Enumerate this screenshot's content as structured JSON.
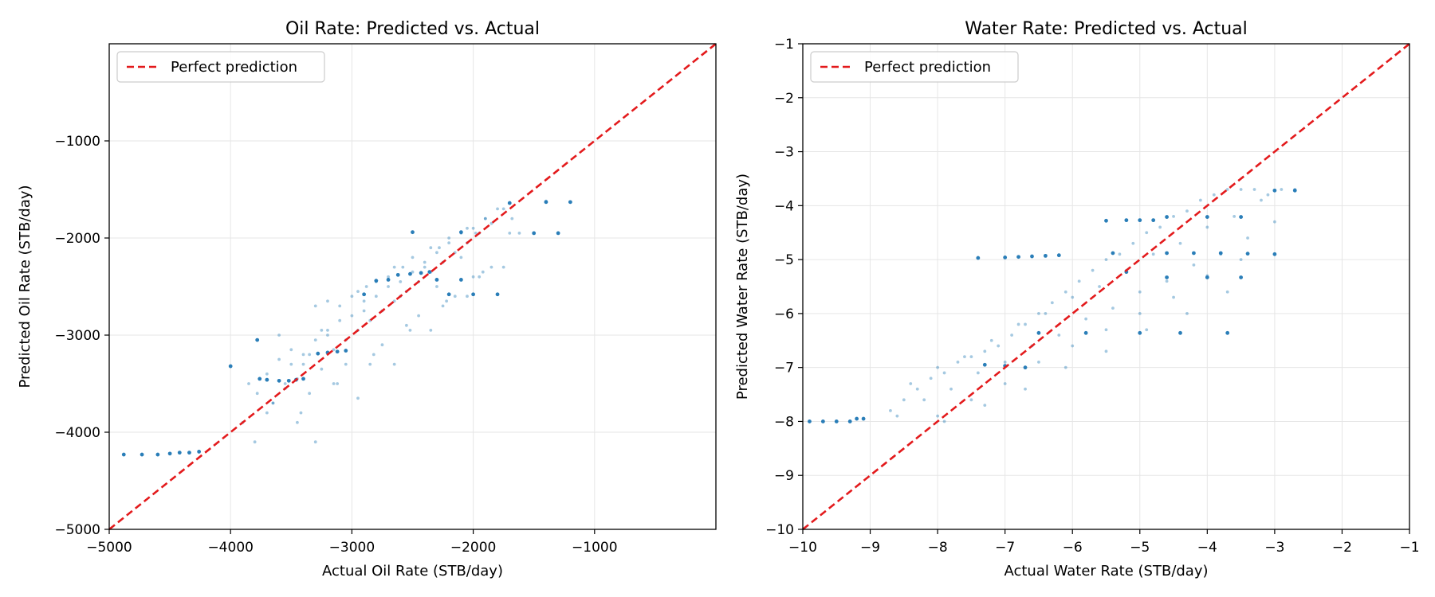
{
  "chart_data": [
    {
      "type": "scatter",
      "title": "Oil Rate: Predicted vs. Actual",
      "xlabel": "Actual Oil Rate (STB/day)",
      "ylabel": "Predicted Oil Rate (STB/day)",
      "xlim": [
        -5000,
        0
      ],
      "ylim": [
        -5000,
        0
      ],
      "xticks": [
        -5000,
        -4000,
        -3000,
        -2000,
        -1000
      ],
      "xtick_labels": [
        "−5000",
        "−4000",
        "−3000",
        "−2000",
        "−1000"
      ],
      "yticks": [
        -5000,
        -4000,
        -3000,
        -2000,
        -1000
      ],
      "ytick_labels": [
        "−5000",
        "−4000",
        "−3000",
        "−2000",
        "−1000"
      ],
      "grid": true,
      "legend": {
        "placement": "upper-left",
        "entries": [
          {
            "label": "Perfect prediction",
            "style": "dashed",
            "color": "#e31a1c"
          }
        ]
      },
      "reference_line": {
        "from": [
          -5000,
          -5000
        ],
        "to": [
          0,
          0
        ]
      },
      "series": [
        {
          "style": "cloud",
          "color": "#1f77b4",
          "x": [
            -3850,
            -3780,
            -3700,
            -3650,
            -3600,
            -3550,
            -3500,
            -3450,
            -3400,
            -3350,
            -3300,
            -3250,
            -3200,
            -3150,
            -3100,
            -3050,
            -3000,
            -2950,
            -2900,
            -2850,
            -2800,
            -2750,
            -2700,
            -2650,
            -2600,
            -2550,
            -2500,
            -2450,
            -2400,
            -2350,
            -2300,
            -2250,
            -2200,
            -2150,
            -2100,
            -2050,
            -2000,
            -1950,
            -1900,
            -1850,
            -1800,
            -3700,
            -3550,
            -3400,
            -3250,
            -3100,
            -2950,
            -2800,
            -2650,
            -2500,
            -2350,
            -2200,
            -2050,
            -1900,
            -1750,
            -3600,
            -3300,
            -3000,
            -2700,
            -2400,
            -2100,
            -3450,
            -3150,
            -2850,
            -2550,
            -2250,
            -1950,
            -3900,
            -3650,
            -3350,
            -3050,
            -2750,
            -2450,
            -2150,
            -1850,
            -3500,
            -3200,
            -2900,
            -2600,
            -2300,
            -2000,
            -1700,
            -3800,
            -3420,
            -3120,
            -2820,
            -2520,
            -2220,
            -1920,
            -1620,
            -3300,
            -2950,
            -2650,
            -2350,
            -2050,
            -1750,
            -3200,
            -2880,
            -2580,
            -2280,
            -1980,
            -1680,
            -1400
          ],
          "y": [
            -3500,
            -3600,
            -3400,
            -3700,
            -3250,
            -3550,
            -3150,
            -3450,
            -3300,
            -3200,
            -3050,
            -3350,
            -2950,
            -3150,
            -2850,
            -3050,
            -2800,
            -2950,
            -2650,
            -2850,
            -2600,
            -2750,
            -2500,
            -2650,
            -2450,
            -2550,
            -2350,
            -2450,
            -2250,
            -2350,
            -2150,
            -2250,
            -2050,
            -2150,
            -1950,
            -2050,
            -1900,
            -1950,
            -1800,
            -1850,
            -1700,
            -3800,
            -3500,
            -3200,
            -2950,
            -2700,
            -2550,
            -2450,
            -2300,
            -2200,
            -2100,
            -2000,
            -1900,
            -1800,
            -1700,
            -3000,
            -2700,
            -2600,
            -2400,
            -2300,
            -2200,
            -3900,
            -3500,
            -3300,
            -2900,
            -2700,
            -2400,
            -3900,
            -3700,
            -3600,
            -3300,
            -3100,
            -2800,
            -2600,
            -2300,
            -3300,
            -3000,
            -2750,
            -2600,
            -2500,
            -2400,
            -1950,
            -4100,
            -3800,
            -3500,
            -3200,
            -2950,
            -2650,
            -2350,
            -1950,
            -4100,
            -3650,
            -3300,
            -2950,
            -2600,
            -2300,
            -2650,
            -2500,
            -2300,
            -2100,
            -1950,
            -1800,
            -1620
          ]
        },
        {
          "style": "rows",
          "color": "#1f77b4",
          "x": [
            -4880,
            -4730,
            -4600,
            -4500,
            -4420,
            -4340,
            -4260,
            -3760,
            -3700,
            -3600,
            -3520,
            -3460,
            -3400,
            -3280,
            -3200,
            -3120,
            -3050,
            -2800,
            -2620,
            -2520,
            -2430,
            -2360,
            -2900,
            -2200,
            -2000,
            -1800,
            -2700,
            -2300,
            -2100,
            -1500,
            -1300,
            -2500,
            -2100,
            -1700,
            -1400,
            -1200,
            -4000,
            -3780
          ],
          "y": [
            -4230,
            -4230,
            -4230,
            -4220,
            -4210,
            -4210,
            -4200,
            -3450,
            -3460,
            -3470,
            -3470,
            -3460,
            -3450,
            -3190,
            -3180,
            -3170,
            -3160,
            -2440,
            -2380,
            -2370,
            -2360,
            -2350,
            -2580,
            -2580,
            -2580,
            -2580,
            -2430,
            -2430,
            -2430,
            -1950,
            -1950,
            -1940,
            -1940,
            -1640,
            -1630,
            -1630,
            -3320,
            -3050
          ]
        }
      ]
    },
    {
      "type": "scatter",
      "title": "Water Rate: Predicted vs. Actual",
      "xlabel": "Actual Water Rate (STB/day)",
      "ylabel": "Predicted Water Rate (STB/day)",
      "xlim": [
        -10,
        -1
      ],
      "ylim": [
        -10,
        -1
      ],
      "xticks": [
        -10,
        -9,
        -8,
        -7,
        -6,
        -5,
        -4,
        -3,
        -2,
        -1
      ],
      "xtick_labels": [
        "−10",
        "−9",
        "−8",
        "−7",
        "−6",
        "−5",
        "−4",
        "−3",
        "−2",
        "−1"
      ],
      "yticks": [
        -10,
        -9,
        -8,
        -7,
        -6,
        -5,
        -4,
        -3,
        -2,
        -1
      ],
      "ytick_labels": [
        "−10",
        "−9",
        "−8",
        "−7",
        "−6",
        "−5",
        "−4",
        "−3",
        "−2",
        "−1"
      ],
      "grid": true,
      "legend": {
        "placement": "upper-left",
        "entries": [
          {
            "label": "Perfect prediction",
            "style": "dashed",
            "color": "#e31a1c"
          }
        ]
      },
      "reference_line": {
        "from": [
          -10,
          -10
        ],
        "to": [
          -1,
          -1
        ]
      },
      "series": [
        {
          "style": "cloud",
          "color": "#1f77b4",
          "x": [
            -8.7,
            -8.5,
            -8.3,
            -8.1,
            -7.9,
            -7.7,
            -7.5,
            -7.3,
            -7.1,
            -6.9,
            -6.7,
            -6.5,
            -6.3,
            -6.1,
            -5.9,
            -5.7,
            -5.5,
            -5.3,
            -5.1,
            -4.9,
            -4.7,
            -4.5,
            -4.3,
            -4.1,
            -3.9,
            -3.7,
            -3.5,
            -3.3,
            -3.1,
            -2.9,
            -2.7,
            -8.6,
            -8.2,
            -7.8,
            -7.4,
            -7.0,
            -6.6,
            -6.2,
            -5.8,
            -5.4,
            -5.0,
            -4.6,
            -4.2,
            -3.8,
            -3.4,
            -3.0,
            -8.4,
            -8.0,
            -7.6,
            -7.2,
            -6.8,
            -6.4,
            -6.0,
            -5.6,
            -5.2,
            -4.8,
            -4.4,
            -4.0,
            -3.6,
            -3.2,
            -7.9,
            -7.3,
            -6.7,
            -6.1,
            -5.5,
            -4.9,
            -4.3,
            -3.7,
            -8.0,
            -7.5,
            -7.0,
            -6.5,
            -6.0,
            -5.5,
            -5.0,
            -4.5,
            -4.0,
            -3.5
          ],
          "y": [
            -7.8,
            -7.6,
            -7.4,
            -7.2,
            -7.1,
            -6.9,
            -6.8,
            -6.7,
            -6.6,
            -6.4,
            -6.2,
            -6.0,
            -5.8,
            -5.6,
            -5.4,
            -5.2,
            -5.0,
            -4.9,
            -4.7,
            -4.5,
            -4.4,
            -4.2,
            -4.1,
            -3.9,
            -3.8,
            -3.7,
            -3.7,
            -3.7,
            -3.8,
            -3.7,
            -3.7,
            -7.9,
            -7.6,
            -7.4,
            -7.1,
            -6.9,
            -6.6,
            -6.4,
            -6.1,
            -5.9,
            -5.6,
            -5.4,
            -5.1,
            -4.9,
            -4.6,
            -4.3,
            -7.3,
            -7.0,
            -6.8,
            -6.5,
            -6.2,
            -6.0,
            -5.7,
            -5.5,
            -5.2,
            -4.9,
            -4.7,
            -4.4,
            -4.2,
            -3.9,
            -8.0,
            -7.7,
            -7.4,
            -7.0,
            -6.7,
            -6.3,
            -6.0,
            -5.6,
            -7.9,
            -7.6,
            -7.3,
            -6.9,
            -6.6,
            -6.3,
            -6.0,
            -5.7,
            -5.3,
            -5.0
          ]
        },
        {
          "style": "rows",
          "color": "#1f77b4",
          "x": [
            -9.9,
            -9.7,
            -9.5,
            -9.3,
            -9.2,
            -9.1,
            -7.4,
            -7.0,
            -6.8,
            -6.6,
            -6.4,
            -6.2,
            -5.5,
            -5.2,
            -5.0,
            -4.8,
            -5.4,
            -4.6,
            -4.2,
            -3.8,
            -3.4,
            -3.0,
            -4.6,
            -4.0,
            -3.5,
            -3.0,
            -2.7,
            -5.2,
            -4.6,
            -4.0,
            -3.5,
            -6.5,
            -5.8,
            -5.0,
            -4.4,
            -3.7,
            -7.3,
            -7.0,
            -6.7
          ],
          "y": [
            -8.0,
            -8.0,
            -8.0,
            -8.0,
            -7.95,
            -7.95,
            -4.97,
            -4.96,
            -4.95,
            -4.94,
            -4.93,
            -4.92,
            -4.28,
            -4.27,
            -4.27,
            -4.27,
            -4.88,
            -4.88,
            -4.88,
            -4.88,
            -4.89,
            -4.9,
            -4.21,
            -4.21,
            -4.21,
            -3.72,
            -3.72,
            -5.23,
            -5.33,
            -5.33,
            -5.33,
            -6.36,
            -6.36,
            -6.36,
            -6.36,
            -6.36,
            -6.95,
            -6.97,
            -7.0
          ]
        }
      ]
    }
  ]
}
